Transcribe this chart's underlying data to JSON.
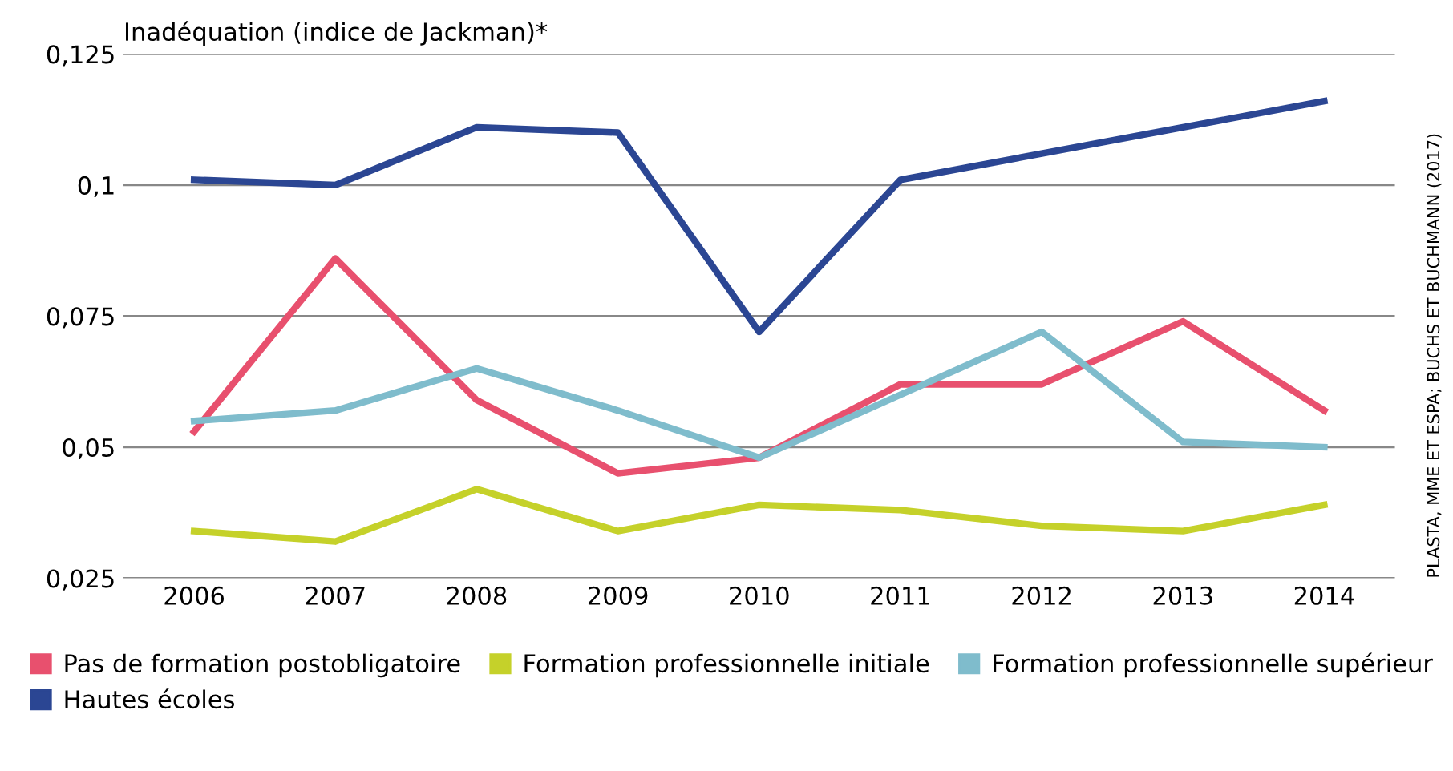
{
  "chart_data": {
    "type": "line",
    "title": "Inadéquation (indice de Jackman)*",
    "categories": [
      "2006",
      "2007",
      "2008",
      "2009",
      "2010",
      "2011",
      "2012",
      "2013",
      "2014"
    ],
    "series": [
      {
        "name": "Pas de formation postobligatoire",
        "color": "#e8506e",
        "values": [
          0.053,
          0.086,
          0.059,
          0.045,
          0.048,
          0.062,
          0.062,
          0.074,
          0.057
        ]
      },
      {
        "name": "Formation professionnelle initiale",
        "color": "#c5d12a",
        "values": [
          0.034,
          0.032,
          0.042,
          0.034,
          0.039,
          0.038,
          0.035,
          0.034,
          0.039
        ]
      },
      {
        "name": "Formation professionnelle supérieur",
        "color": "#7fbccc",
        "values": [
          0.055,
          0.057,
          0.065,
          0.057,
          0.048,
          0.06,
          0.072,
          0.051,
          0.05
        ]
      },
      {
        "name": "Hautes écoles",
        "color": "#2b4693",
        "values": [
          0.101,
          0.1,
          0.111,
          0.11,
          0.072,
          0.101,
          0.106,
          0.111,
          0.116
        ]
      }
    ],
    "ylim": [
      0.025,
      0.125
    ],
    "yticks": [
      {
        "value": 0.025,
        "label": "0,025"
      },
      {
        "value": 0.05,
        "label": "0,05"
      },
      {
        "value": 0.075,
        "label": "0,075"
      },
      {
        "value": 0.1,
        "label": "0,1"
      },
      {
        "value": 0.125,
        "label": "0,125"
      }
    ],
    "grid": "y",
    "legend": "bottom",
    "marker": "none",
    "line_style": "solid",
    "annotations": [
      "PLASTA, MME ET ESPA; BUCHS ET BUCHMANN (2017)"
    ]
  }
}
